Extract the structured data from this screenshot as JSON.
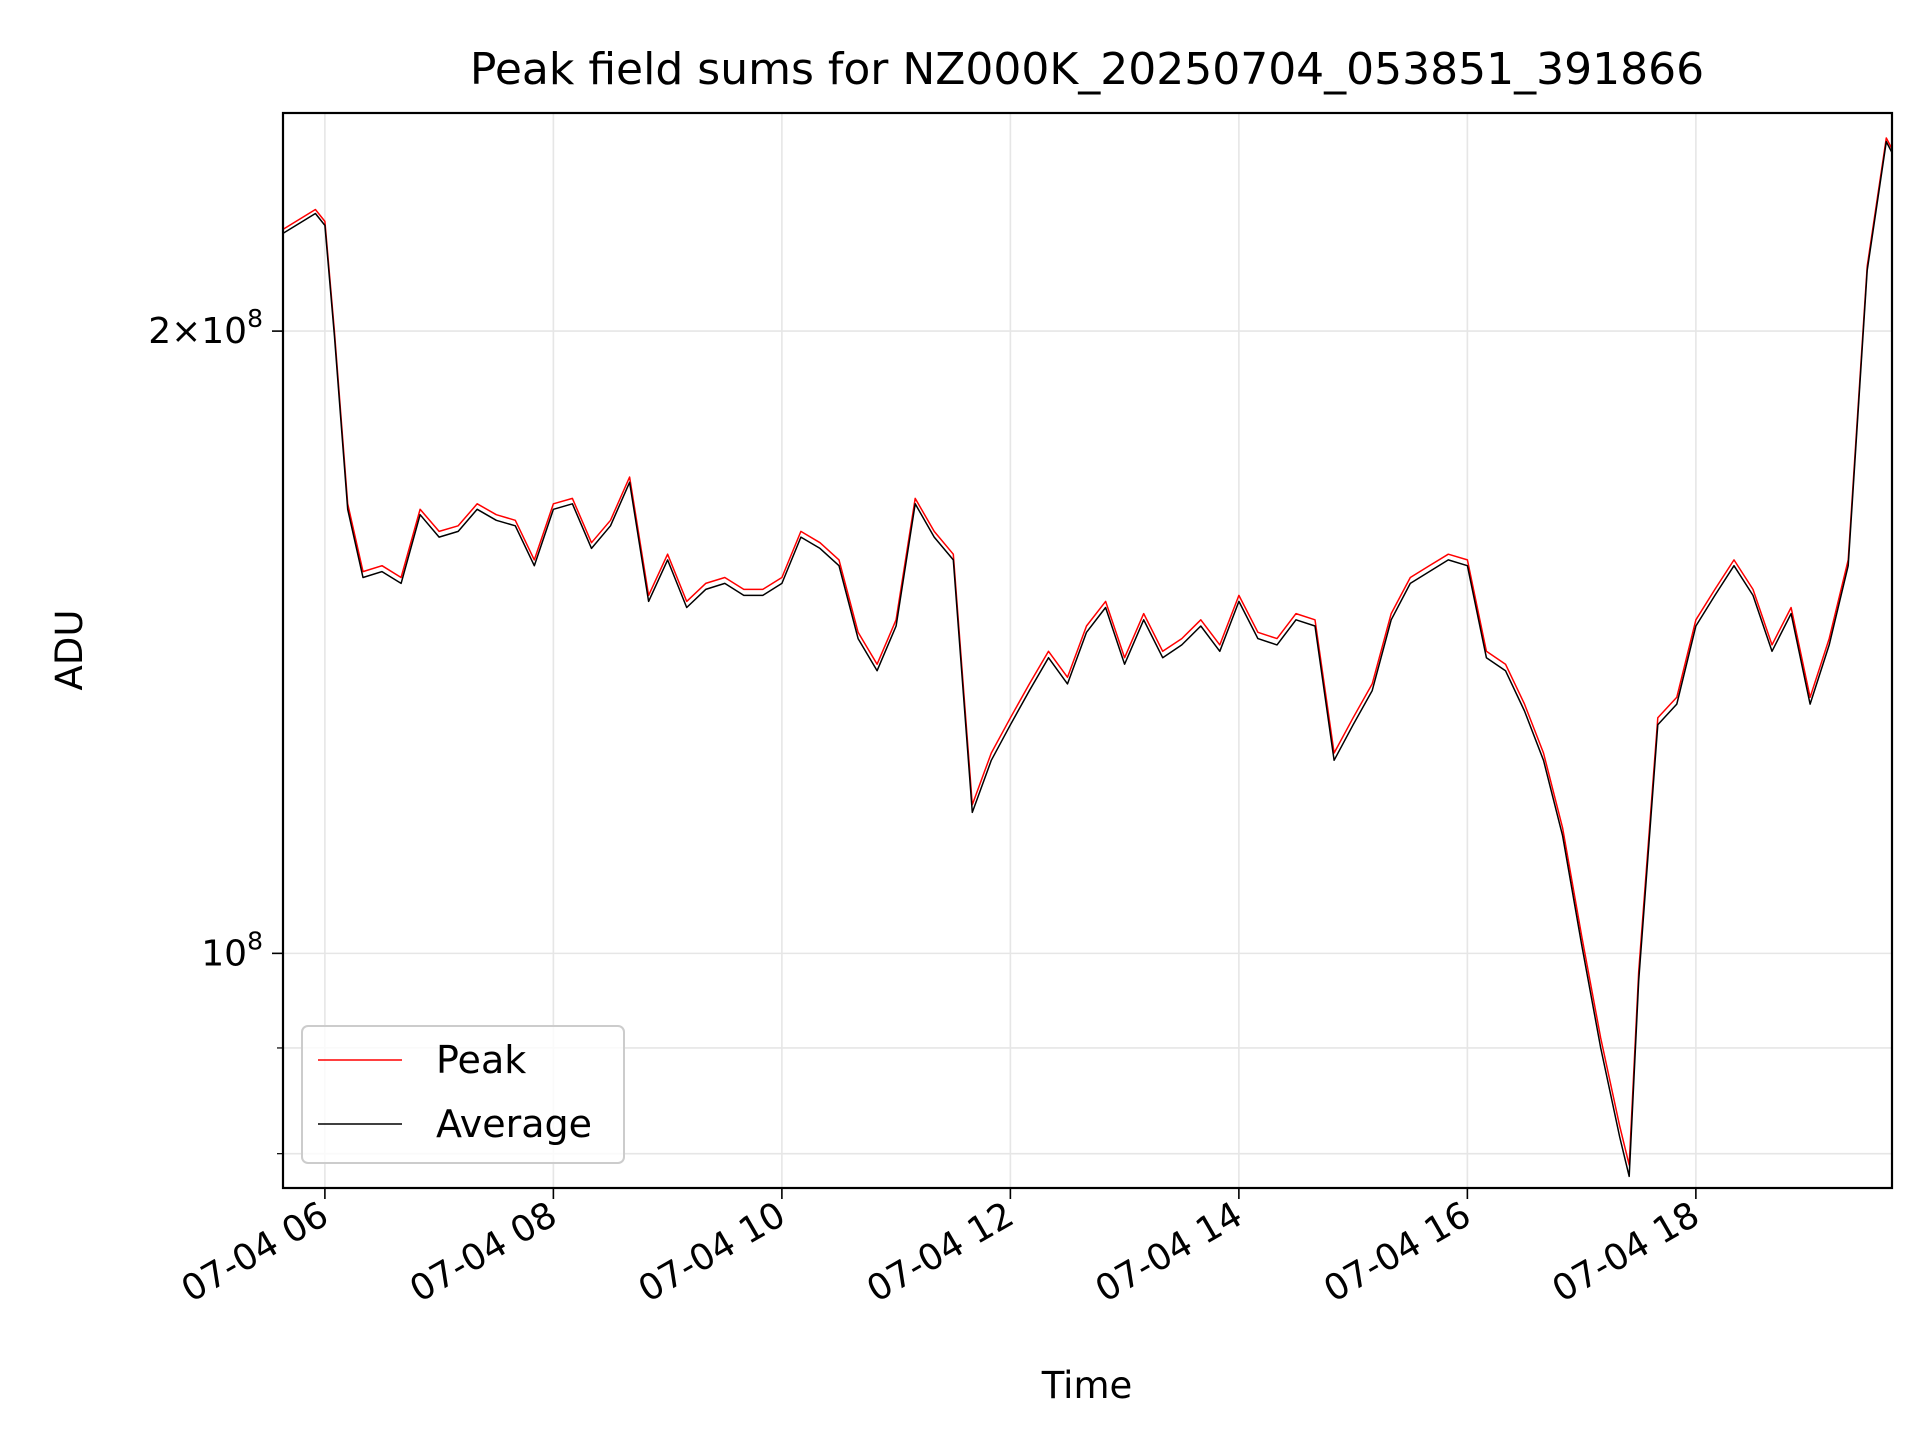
{
  "chart_data": {
    "type": "line",
    "title": "Peak field sums for NZ000K_20250704_053851_391866",
    "xlabel": "Time",
    "ylabel": "ADU",
    "yscale": "log",
    "xlim": [
      "07-04 05:38",
      "07-04 19:43"
    ],
    "ylim": [
      77000000,
      255000000
    ],
    "grid": true,
    "legend_position": "lower-left",
    "x_ticks": [
      "07-04 06",
      "07-04 08",
      "07-04 10",
      "07-04 12",
      "07-04 14",
      "07-04 16",
      "07-04 18"
    ],
    "y_ticks": [
      {
        "value": 100000000,
        "base": "10",
        "exponent": "8"
      },
      {
        "value": 200000000,
        "mantissa": "2",
        "base": "10",
        "exponent": "8"
      }
    ],
    "x": [
      "07-04 05:38",
      "07-04 05:55",
      "07-04 06:00",
      "07-04 06:05",
      "07-04 06:12",
      "07-04 06:20",
      "07-04 06:30",
      "07-04 06:40",
      "07-04 06:50",
      "07-04 07:00",
      "07-04 07:10",
      "07-04 07:20",
      "07-04 07:30",
      "07-04 07:40",
      "07-04 07:50",
      "07-04 08:00",
      "07-04 08:10",
      "07-04 08:20",
      "07-04 08:30",
      "07-04 08:40",
      "07-04 08:50",
      "07-04 09:00",
      "07-04 09:10",
      "07-04 09:20",
      "07-04 09:30",
      "07-04 09:40",
      "07-04 09:50",
      "07-04 10:00",
      "07-04 10:10",
      "07-04 10:20",
      "07-04 10:30",
      "07-04 10:40",
      "07-04 10:50",
      "07-04 11:00",
      "07-04 11:10",
      "07-04 11:20",
      "07-04 11:30",
      "07-04 11:40",
      "07-04 11:50",
      "07-04 12:00",
      "07-04 12:10",
      "07-04 12:20",
      "07-04 12:30",
      "07-04 12:40",
      "07-04 12:50",
      "07-04 13:00",
      "07-04 13:10",
      "07-04 13:20",
      "07-04 13:30",
      "07-04 13:40",
      "07-04 13:50",
      "07-04 14:00",
      "07-04 14:10",
      "07-04 14:20",
      "07-04 14:30",
      "07-04 14:40",
      "07-04 14:50",
      "07-04 15:00",
      "07-04 15:10",
      "07-04 15:20",
      "07-04 15:30",
      "07-04 15:40",
      "07-04 15:50",
      "07-04 16:00",
      "07-04 16:10",
      "07-04 16:20",
      "07-04 16:30",
      "07-04 16:40",
      "07-04 16:50",
      "07-04 17:00",
      "07-04 17:10",
      "07-04 17:20",
      "07-04 17:25",
      "07-04 17:30",
      "07-04 17:40",
      "07-04 17:50",
      "07-04 18:00",
      "07-04 18:10",
      "07-04 18:20",
      "07-04 18:30",
      "07-04 18:40",
      "07-04 18:50",
      "07-04 19:00",
      "07-04 19:10",
      "07-04 19:20",
      "07-04 19:30",
      "07-04 19:40",
      "07-04 19:43"
    ],
    "series": [
      {
        "name": "Peak",
        "color": "#ff0000",
        "values": [
          224000000.0,
          229000000.0,
          226000000.0,
          200000000.0,
          165000000.0,
          153000000.0,
          154000000.0,
          152000000.0,
          164000000.0,
          160000000.0,
          161000000.0,
          165000000.0,
          163000000.0,
          162000000.0,
          155000000.0,
          165000000.0,
          166000000.0,
          158000000.0,
          162000000.0,
          170000000.0,
          149000000.0,
          156000000.0,
          148000000.0,
          151000000.0,
          152000000.0,
          150000000.0,
          150000000.0,
          152000000.0,
          160000000.0,
          158000000.0,
          155000000.0,
          143000000.0,
          138000000.0,
          145000000.0,
          166000000.0,
          160000000.0,
          156000000.0,
          118000000.0,
          125000000.0,
          130000000.0,
          135000000.0,
          140000000.0,
          136000000.0,
          144000000.0,
          148000000.0,
          139000000.0,
          146000000.0,
          140000000.0,
          142000000.0,
          145000000.0,
          141000000.0,
          149000000.0,
          143000000.0,
          142000000.0,
          146000000.0,
          145000000.0,
          125000000.0,
          130000000.0,
          135000000.0,
          146000000.0,
          152000000.0,
          154000000.0,
          156000000.0,
          155000000.0,
          140000000.0,
          138000000.0,
          132000000.0,
          125000000.0,
          115000000.0,
          102000000.0,
          91000000.0,
          82500000.0,
          79000000.0,
          98000000.0,
          130000000.0,
          133000000.0,
          145000000.0,
          150000000.0,
          155000000.0,
          150000000.0,
          141000000.0,
          147000000.0,
          133000000.0,
          142000000.0,
          155000000.0,
          215000000.0,
          248000000.0,
          245000000.0
        ]
      },
      {
        "name": "Average",
        "color": "#000000",
        "values": [
          223000000.0,
          228000000.0,
          225000000.0,
          199000000.0,
          164000000.0,
          152000000.0,
          153000000.0,
          151000000.0,
          163000000.0,
          159000000.0,
          160000000.0,
          164000000.0,
          162000000.0,
          161000000.0,
          154000000.0,
          164000000.0,
          165000000.0,
          157000000.0,
          161000000.0,
          169000000.0,
          148000000.0,
          155000000.0,
          147000000.0,
          150000000.0,
          151000000.0,
          149000000.0,
          149000000.0,
          151000000.0,
          159000000.0,
          157000000.0,
          154000000.0,
          142000000.0,
          137000000.0,
          144000000.0,
          165000000.0,
          159000000.0,
          155000000.0,
          117000000.0,
          124000000.0,
          129000000.0,
          134000000.0,
          139000000.0,
          135000000.0,
          143000000.0,
          147000000.0,
          138000000.0,
          145000000.0,
          139000000.0,
          141000000.0,
          144000000.0,
          140000000.0,
          148000000.0,
          142000000.0,
          141000000.0,
          145000000.0,
          144000000.0,
          124000000.0,
          129000000.0,
          134000000.0,
          145000000.0,
          151000000.0,
          153000000.0,
          155000000.0,
          154000000.0,
          139000000.0,
          137000000.0,
          131000000.0,
          124000000.0,
          114000000.0,
          101000000.0,
          90000000.0,
          81500000.0,
          78000000.0,
          97000000.0,
          129000000.0,
          132000000.0,
          144000000.0,
          149000000.0,
          154000000.0,
          149000000.0,
          140000000.0,
          146000000.0,
          132000000.0,
          141000000.0,
          154000000.0,
          214000000.0,
          247000000.0,
          244000000.0
        ]
      }
    ],
    "legend": [
      {
        "label": "Peak",
        "color": "#ff0000"
      },
      {
        "label": "Average",
        "color": "#000000"
      }
    ]
  }
}
